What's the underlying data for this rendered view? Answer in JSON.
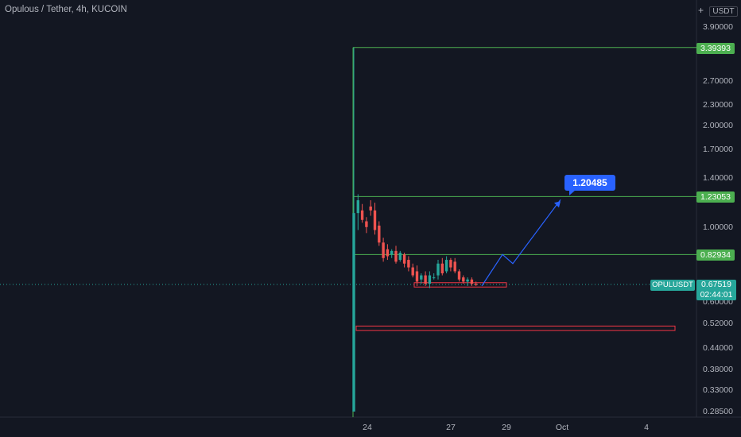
{
  "header": {
    "title": "Opulous / Tether, 4h, KUCOIN",
    "plus_label": "+",
    "currency": "USDT"
  },
  "colors": {
    "background": "#131722",
    "up": "#26a69a",
    "down": "#ef5350",
    "level_line": "#4caf50",
    "zone": "#f23645",
    "projection": "#2962ff"
  },
  "price_labels": {
    "high": "3.39393",
    "mid": "1.23053",
    "low": "0.82934",
    "symbol": "OPULUSDT",
    "current": "0.67519",
    "countdown": "02:44:01",
    "projection_target": "1.20485"
  },
  "chart_data": {
    "type": "candlestick",
    "title": "Opulous / Tether, 4h, KUCOIN",
    "y_scale": "log",
    "y_ticks": [
      "3.90000",
      "2.70000",
      "2.30000",
      "2.00000",
      "1.70000",
      "1.40000",
      "1.00000",
      "0.60000",
      "0.52000",
      "0.44000",
      "0.38000",
      "0.33000",
      "0.28500"
    ],
    "x_ticks": [
      "24",
      "27",
      "29",
      "Oct",
      "4"
    ],
    "horizontal_levels": [
      3.39393,
      1.23053,
      0.82934
    ],
    "current_price": 0.67519,
    "projection_target": 1.20485,
    "support_zones": [
      [
        0.665,
        0.685
      ],
      [
        0.495,
        0.51
      ]
    ],
    "candles": [
      {
        "o": 0.285,
        "h": 3.39,
        "l": 0.285,
        "c": 1.1
      },
      {
        "o": 1.1,
        "h": 1.25,
        "l": 0.98,
        "c": 1.2
      },
      {
        "o": 1.12,
        "h": 1.17,
        "l": 1.03,
        "c": 1.05
      },
      {
        "o": 1.04,
        "h": 1.07,
        "l": 0.96,
        "c": 1.0
      },
      {
        "o": 1.15,
        "h": 1.2,
        "l": 1.08,
        "c": 1.12
      },
      {
        "o": 1.12,
        "h": 1.18,
        "l": 0.95,
        "c": 0.98
      },
      {
        "o": 1.01,
        "h": 1.04,
        "l": 0.88,
        "c": 0.9
      },
      {
        "o": 0.9,
        "h": 0.93,
        "l": 0.79,
        "c": 0.81
      },
      {
        "o": 0.86,
        "h": 0.89,
        "l": 0.8,
        "c": 0.82
      },
      {
        "o": 0.83,
        "h": 0.86,
        "l": 0.81,
        "c": 0.85
      },
      {
        "o": 0.85,
        "h": 0.88,
        "l": 0.78,
        "c": 0.79
      },
      {
        "o": 0.8,
        "h": 0.85,
        "l": 0.79,
        "c": 0.84
      },
      {
        "o": 0.83,
        "h": 0.84,
        "l": 0.76,
        "c": 0.78
      },
      {
        "o": 0.8,
        "h": 0.82,
        "l": 0.74,
        "c": 0.76
      },
      {
        "o": 0.76,
        "h": 0.78,
        "l": 0.71,
        "c": 0.72
      },
      {
        "o": 0.74,
        "h": 0.77,
        "l": 0.67,
        "c": 0.69
      },
      {
        "o": 0.7,
        "h": 0.73,
        "l": 0.68,
        "c": 0.72
      },
      {
        "o": 0.72,
        "h": 0.74,
        "l": 0.67,
        "c": 0.68
      },
      {
        "o": 0.68,
        "h": 0.74,
        "l": 0.66,
        "c": 0.72
      },
      {
        "o": 0.71,
        "h": 0.73,
        "l": 0.7,
        "c": 0.71
      },
      {
        "o": 0.72,
        "h": 0.8,
        "l": 0.7,
        "c": 0.78
      },
      {
        "o": 0.78,
        "h": 0.81,
        "l": 0.72,
        "c": 0.73
      },
      {
        "o": 0.74,
        "h": 0.82,
        "l": 0.73,
        "c": 0.8
      },
      {
        "o": 0.8,
        "h": 0.81,
        "l": 0.74,
        "c": 0.76
      },
      {
        "o": 0.79,
        "h": 0.81,
        "l": 0.73,
        "c": 0.74
      },
      {
        "o": 0.74,
        "h": 0.75,
        "l": 0.69,
        "c": 0.7
      },
      {
        "o": 0.71,
        "h": 0.72,
        "l": 0.68,
        "c": 0.69
      },
      {
        "o": 0.69,
        "h": 0.71,
        "l": 0.67,
        "c": 0.7
      },
      {
        "o": 0.7,
        "h": 0.71,
        "l": 0.67,
        "c": 0.68
      },
      {
        "o": 0.68,
        "h": 0.69,
        "l": 0.67,
        "c": 0.675
      }
    ]
  }
}
